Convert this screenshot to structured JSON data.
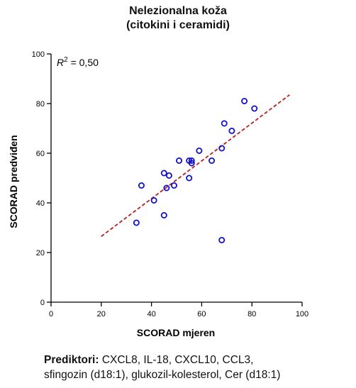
{
  "colors": {
    "marker": "#1010cc",
    "fit_line": "#b81e1e",
    "axis": "#000000"
  },
  "chart_data": {
    "type": "scatter",
    "title": [
      "Nelezionalna koža",
      "(citokini i ceramidi)"
    ],
    "xlabel": "SCORAD mjeren",
    "ylabel": "SCORAD predviđen",
    "xlim": [
      0,
      100
    ],
    "ylim": [
      0,
      100
    ],
    "x_ticks": [
      0,
      20,
      40,
      60,
      80,
      100
    ],
    "y_ticks": [
      0,
      20,
      40,
      60,
      80,
      100
    ],
    "grid": false,
    "annotation": {
      "prefix": "R",
      "sup": "2",
      "suffix": " = 0,50"
    },
    "points": [
      {
        "x": 34,
        "y": 32
      },
      {
        "x": 36,
        "y": 47
      },
      {
        "x": 41,
        "y": 41
      },
      {
        "x": 45,
        "y": 35
      },
      {
        "x": 45,
        "y": 52
      },
      {
        "x": 46,
        "y": 46
      },
      {
        "x": 47,
        "y": 51
      },
      {
        "x": 49,
        "y": 47
      },
      {
        "x": 51,
        "y": 57
      },
      {
        "x": 55,
        "y": 50
      },
      {
        "x": 55,
        "y": 57
      },
      {
        "x": 56,
        "y": 57
      },
      {
        "x": 56,
        "y": 56
      },
      {
        "x": 59,
        "y": 61
      },
      {
        "x": 64,
        "y": 57
      },
      {
        "x": 68,
        "y": 25
      },
      {
        "x": 68,
        "y": 62
      },
      {
        "x": 69,
        "y": 72
      },
      {
        "x": 72,
        "y": 69
      },
      {
        "x": 77,
        "y": 81
      },
      {
        "x": 81,
        "y": 78
      }
    ],
    "fit_line": {
      "x": [
        20,
        95
      ],
      "y": [
        26.5,
        83.5
      ],
      "style": "dashed"
    }
  },
  "footer": {
    "label": "Prediktori:",
    "line1": " CXCL8, IL-18, CXCL10, CCL3,",
    "line2": "sfingozin (d18:1), glukozil-kolesterol, Cer (d18:1)"
  }
}
